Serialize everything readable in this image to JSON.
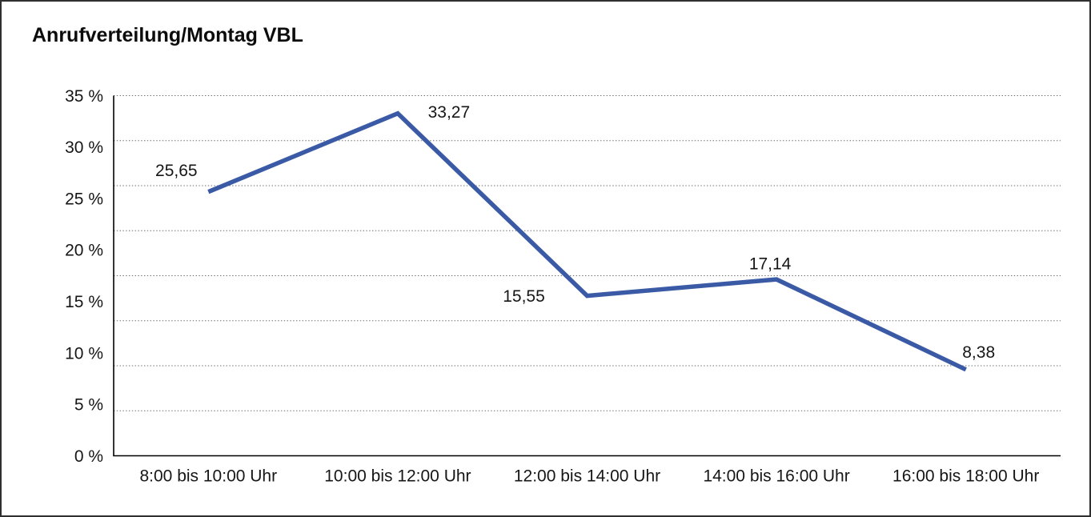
{
  "chart_data": {
    "type": "line",
    "title": "Anrufverteilung/Montag VBL",
    "categories": [
      "8:00 bis 10:00 Uhr",
      "10:00 bis 12:00 Uhr",
      "12:00 bis 14:00 Uhr",
      "14:00 bis 16:00 Uhr",
      "16:00 bis 18:00 Uhr"
    ],
    "values": [
      25.65,
      33.27,
      15.55,
      17.14,
      8.38
    ],
    "value_labels": [
      "25,65",
      "33,27",
      "15,55",
      "17,14",
      "8,38"
    ],
    "xlabel": "",
    "ylabel": "",
    "ylim": [
      0,
      35
    ],
    "y_tick_values": [
      35,
      30,
      25,
      20,
      15,
      10,
      5,
      0
    ],
    "y_tick_labels": [
      "35 %",
      "30 %",
      "25 %",
      "20 %",
      "15 %",
      "10 %",
      "5 %",
      "0 %"
    ],
    "grid": "horizontal dotted",
    "grid_intervals": 8,
    "legend": "none",
    "colors": {
      "line": "#3A5AA5",
      "axis": "#000000",
      "grid": "#6b6b6b",
      "text": "#161616",
      "frame": "#2f2f2f",
      "background": "#ffffff"
    }
  }
}
